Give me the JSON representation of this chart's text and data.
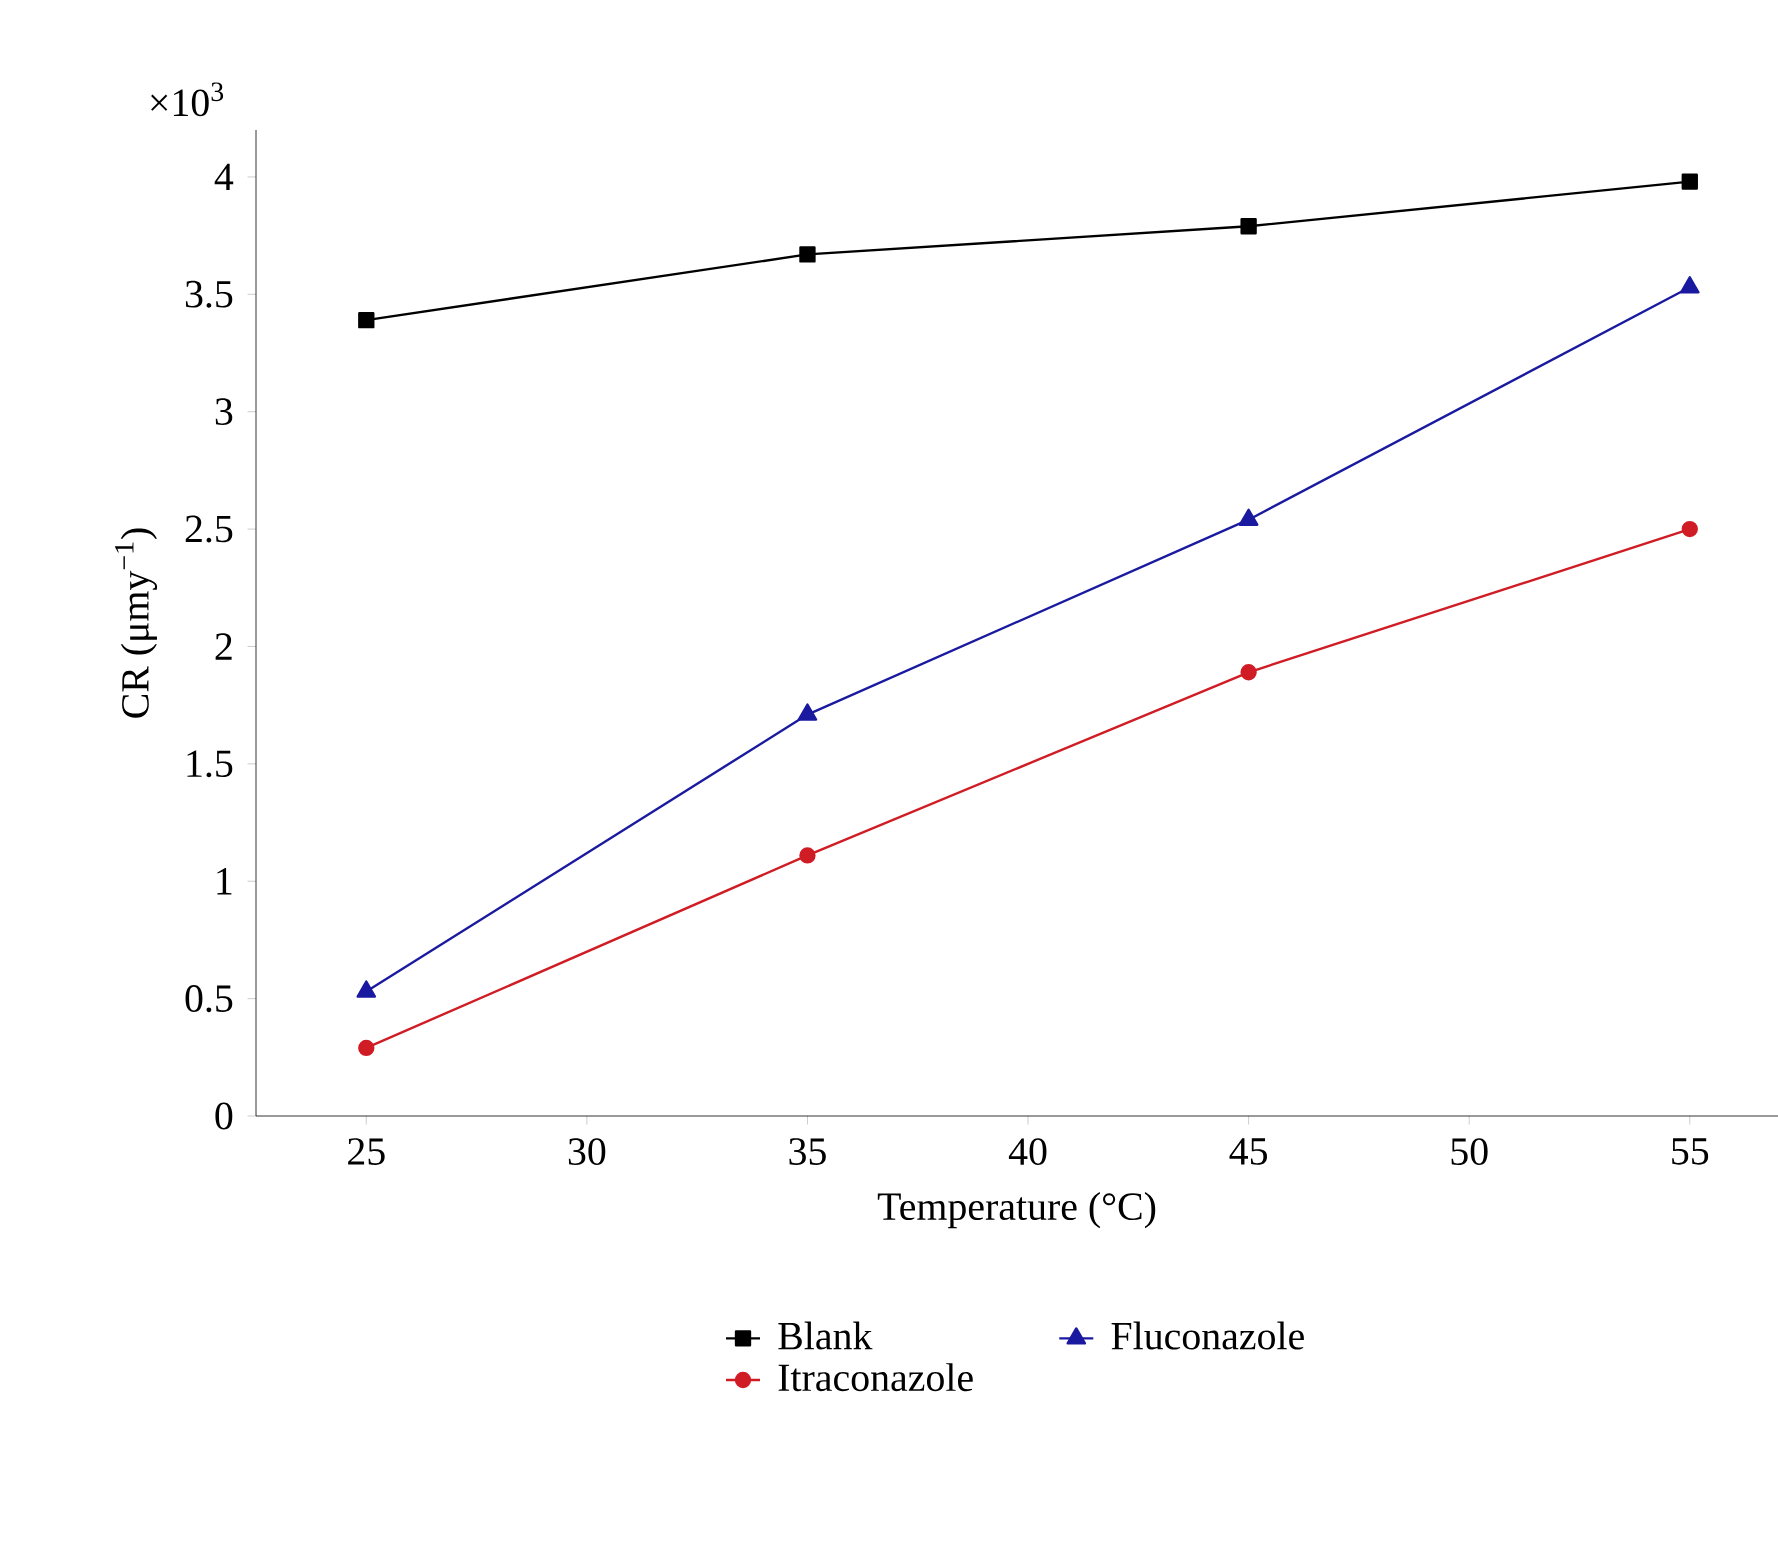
{
  "chart_data": {
    "type": "line",
    "xlabel": "Temperature (°C)",
    "ylabel": "CR (μmy$^{−1}$)",
    "annotations": [
      "×10$^{3}$"
    ],
    "x": [
      25,
      35,
      45,
      55
    ],
    "series": [
      {
        "name": "Blank",
        "color": "#000000",
        "marker": "square",
        "values": [
          3.39,
          3.67,
          3.79,
          3.98
        ]
      },
      {
        "name": "Fluconazole",
        "color": "#1a1aa0",
        "marker": "triangle",
        "values": [
          0.53,
          1.71,
          2.54,
          3.53
        ]
      },
      {
        "name": "Itraconazole",
        "color": "#d01c24",
        "marker": "circle",
        "values": [
          0.29,
          1.11,
          1.89,
          2.5
        ]
      }
    ],
    "xlim": [
      22.5,
      57
    ],
    "ylim": [
      0,
      4.2
    ],
    "xticks": [
      25,
      30,
      35,
      40,
      45,
      50,
      55
    ],
    "yticks": [
      0,
      0.5,
      1,
      1.5,
      2,
      2.5,
      3,
      3.5,
      4
    ],
    "legend": "bottom",
    "grid": false,
    "line_style": "solid"
  }
}
